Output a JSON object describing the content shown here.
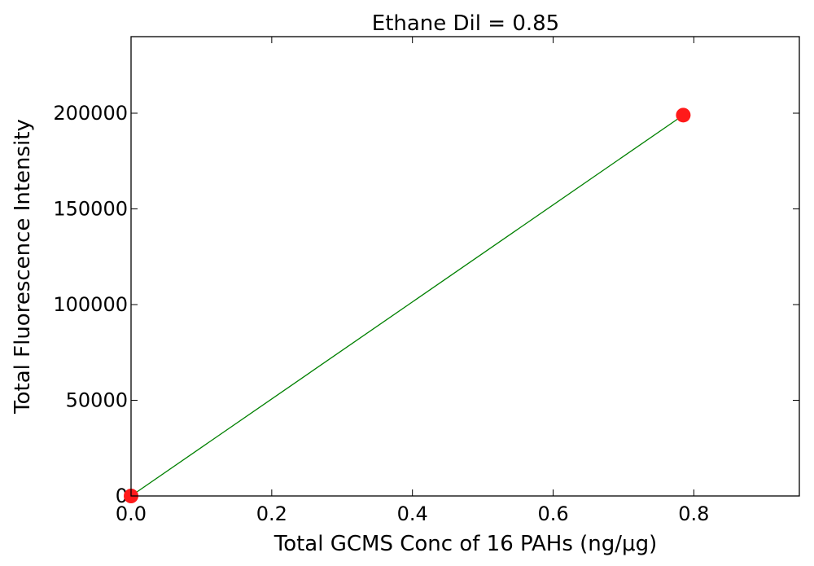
{
  "chart_data": {
    "type": "scatter",
    "title": "Ethane Dil = 0.85",
    "xlabel": "Total GCMS Conc of 16 PAHs (ng/μg)",
    "ylabel": "Total Fluorescence Intensity",
    "xlim": [
      0,
      0.95
    ],
    "ylim": [
      0,
      240000
    ],
    "x_ticks": [
      0.0,
      0.2,
      0.4,
      0.6,
      0.8
    ],
    "x_tick_labels": [
      "0.0",
      "0.2",
      "0.4",
      "0.6",
      "0.8"
    ],
    "y_ticks": [
      0,
      50000,
      100000,
      150000,
      200000
    ],
    "y_tick_labels": [
      "0",
      "50000",
      "100000",
      "150000",
      "200000"
    ],
    "grid": false,
    "series": [
      {
        "kind": "points",
        "x": [
          0.0,
          0.785
        ],
        "y": [
          0,
          199000
        ],
        "color": "#ff1a1a"
      },
      {
        "kind": "line",
        "x": [
          0.0,
          0.785
        ],
        "y": [
          0,
          199000
        ],
        "color": "#008000"
      }
    ]
  }
}
